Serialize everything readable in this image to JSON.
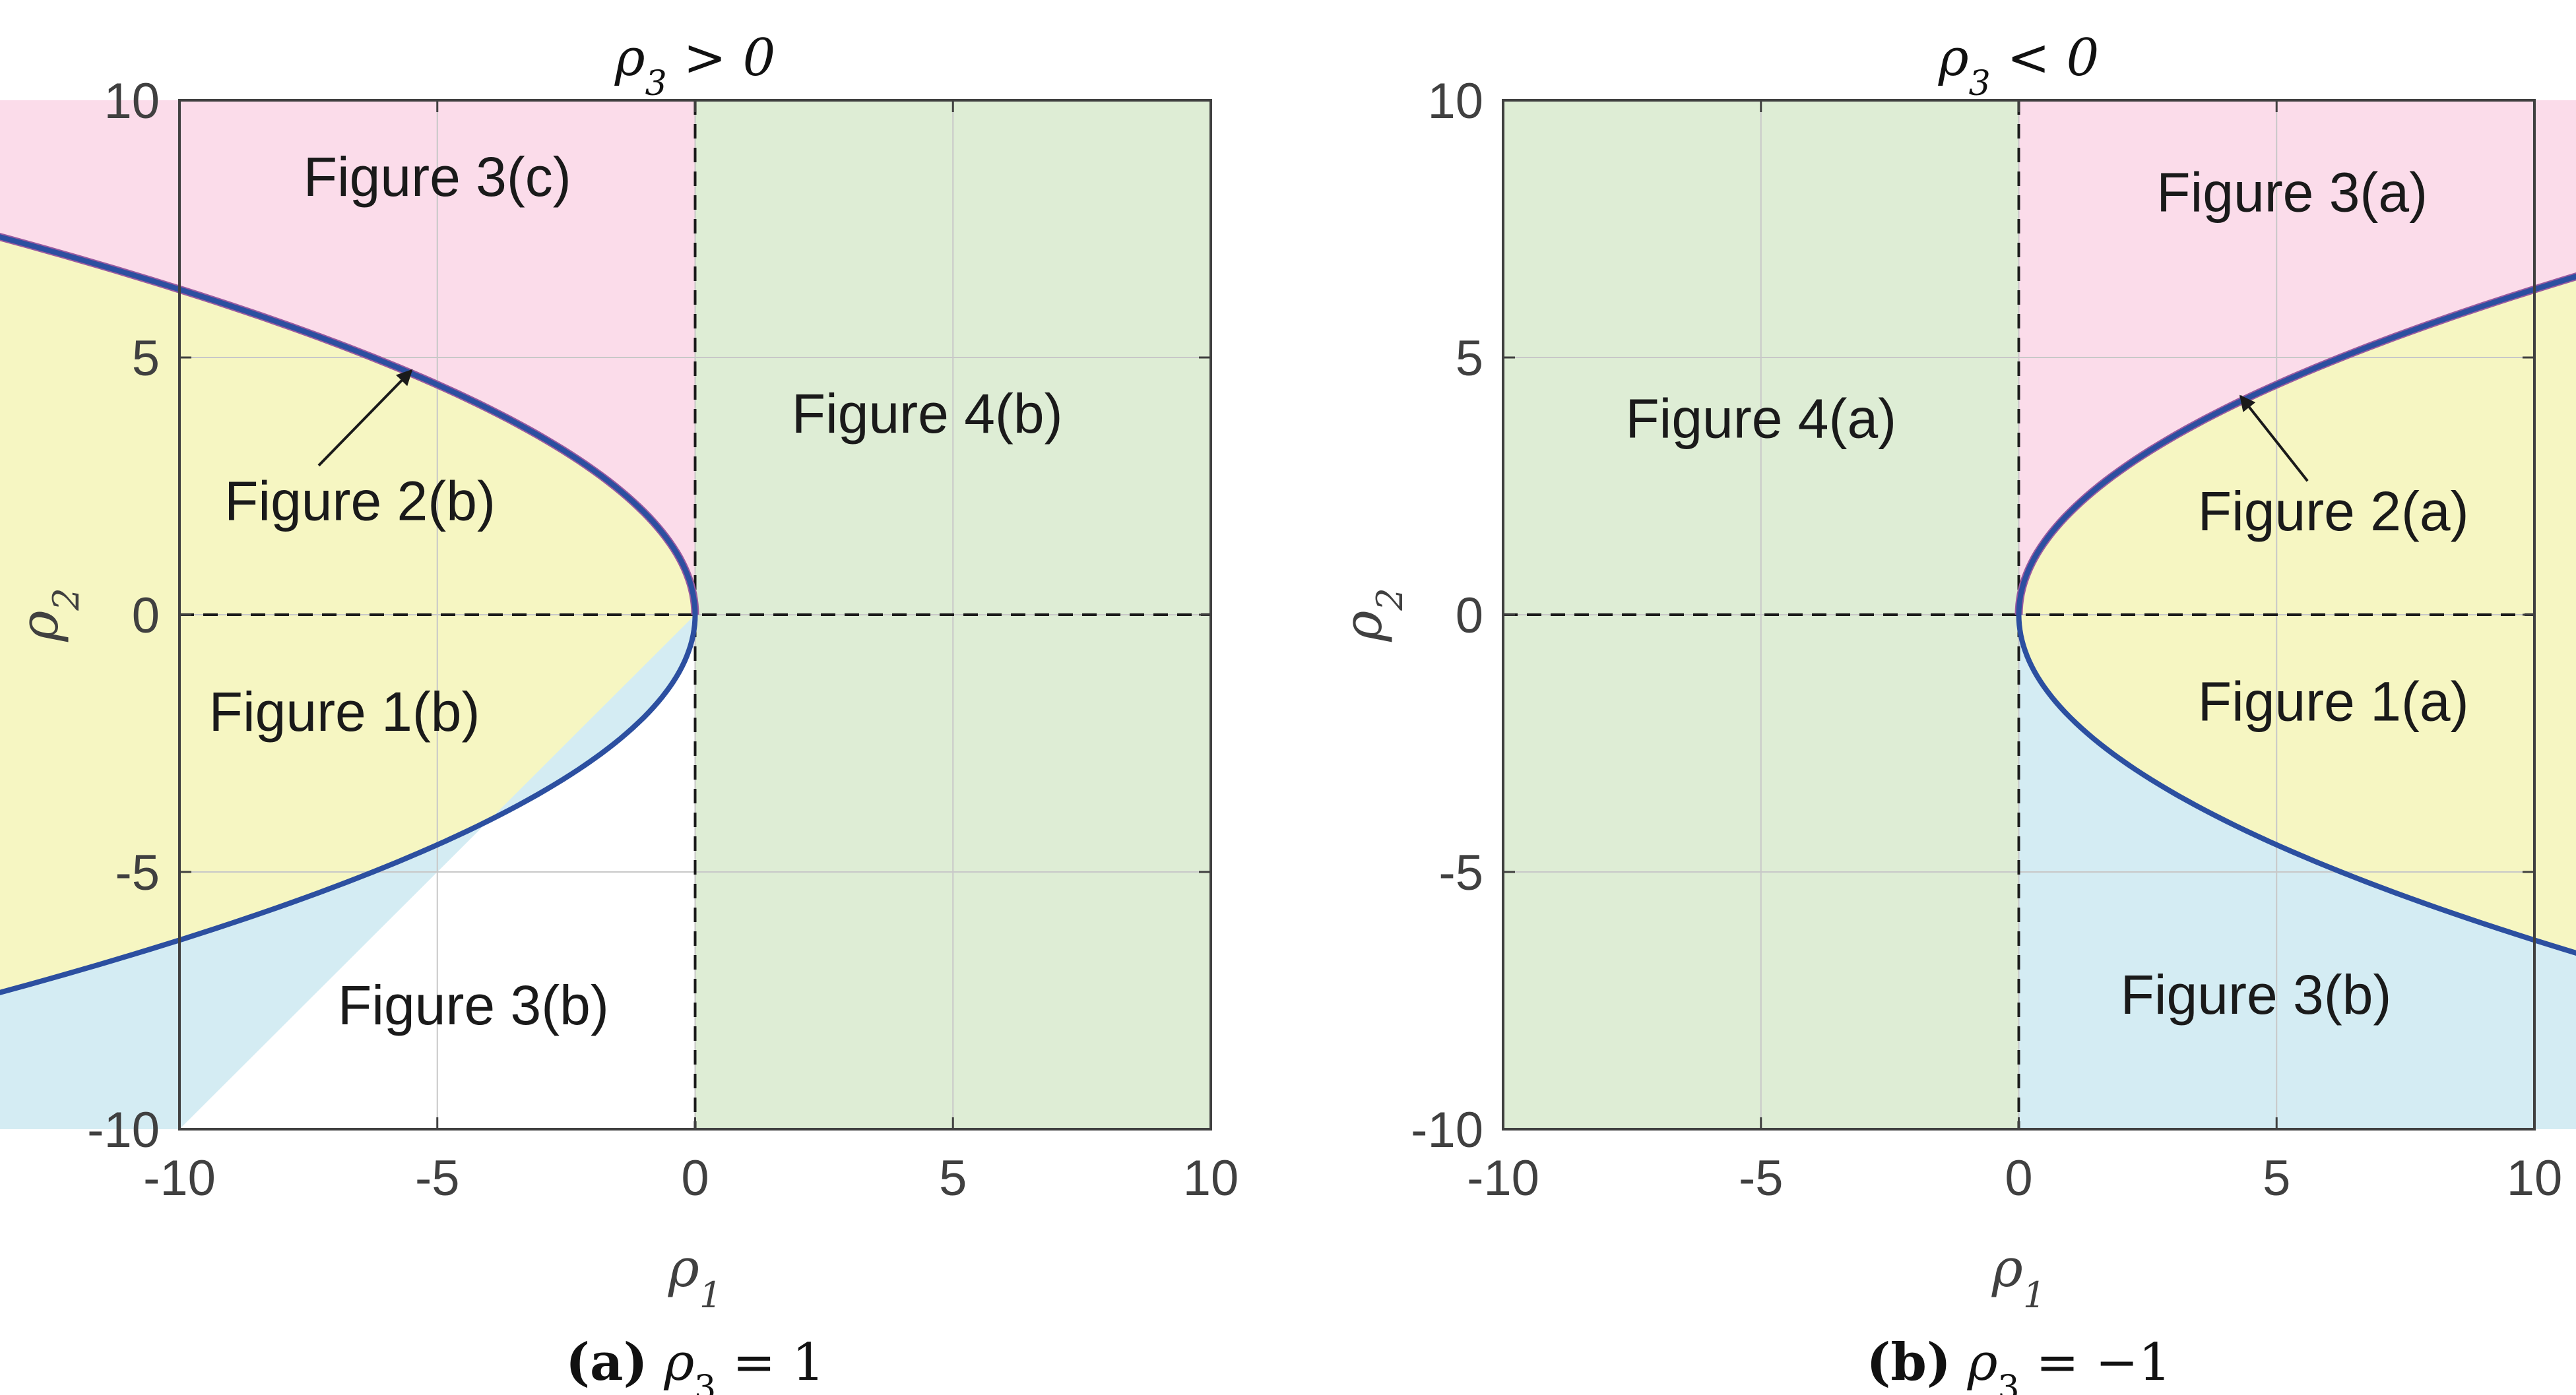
{
  "colors": {
    "pink": "#fbdcea",
    "yellow": "#f6f6c2",
    "blue": "#d4ecf3",
    "green": "#deedd5",
    "boundary_curve": "#2c4fa0",
    "boundary_curve_pink_side": "#9a5aa0",
    "zero_lines": "#1a1a1a",
    "grid": "#c8c8c8",
    "axes_frame": "#404040"
  },
  "chart_data": [
    {
      "type": "area",
      "title": "ρ3 > 0",
      "title_parts": {
        "symbol": "ρ",
        "sub": "3",
        "rest": " > 0"
      },
      "caption": {
        "letter": "(a)",
        "symbol": "ρ",
        "sub": "3",
        "rest": " = 1"
      },
      "xlabel": {
        "symbol": "ρ",
        "sub": "1"
      },
      "ylabel": {
        "symbol": "ρ",
        "sub": "2"
      },
      "xlim": [
        -10,
        10
      ],
      "ylim": [
        -10,
        10
      ],
      "xticks": [
        -10,
        -5,
        0,
        5,
        10
      ],
      "yticks": [
        -10,
        -5,
        0,
        5,
        10
      ],
      "grid": true,
      "rho3": 1,
      "boundary_curve": "rho1 = -rho2^2/4 (for rho1 <= 0)",
      "reference_lines": [
        {
          "orientation": "vertical",
          "at": 0,
          "style": "dashed"
        },
        {
          "orientation": "horizontal",
          "at": 0,
          "style": "dashed"
        }
      ],
      "regions": [
        {
          "label": "Figure 3(c)",
          "color": "pink",
          "text_at": [
            -5,
            8.5
          ]
        },
        {
          "label": "Figure 2(b)",
          "color": "yellow",
          "text_at": [
            -6.5,
            2.2
          ]
        },
        {
          "label": "Figure 1(b)",
          "color": "yellow",
          "text_at": [
            -6.8,
            -1.9
          ]
        },
        {
          "label": "Figure 3(b)",
          "color": "blue",
          "text_at": [
            -4.3,
            -7.6
          ]
        },
        {
          "label": "Figure 4(b)",
          "color": "green",
          "text_at": [
            4.5,
            3.9
          ]
        }
      ],
      "annotation_arrow": {
        "label": "Figure 2(b)",
        "from": [
          -7.3,
          2.9
        ],
        "to": [
          -5.5,
          4.75
        ]
      }
    },
    {
      "type": "area",
      "title": "ρ3 < 0",
      "title_parts": {
        "symbol": "ρ",
        "sub": "3",
        "rest": " < 0"
      },
      "caption": {
        "letter": "(b)",
        "symbol": "ρ",
        "sub": "3",
        "rest": " = −1"
      },
      "xlabel": {
        "symbol": "ρ",
        "sub": "1"
      },
      "ylabel": {
        "symbol": "ρ",
        "sub": "2"
      },
      "xlim": [
        -10,
        10
      ],
      "ylim": [
        -10,
        10
      ],
      "xticks": [
        -10,
        -5,
        0,
        5,
        10
      ],
      "yticks": [
        -10,
        -5,
        0,
        5,
        10
      ],
      "grid": true,
      "rho3": -1,
      "boundary_curve": "rho1 = rho2^2/4 (for rho1 >= 0)",
      "reference_lines": [
        {
          "orientation": "vertical",
          "at": 0,
          "style": "dashed"
        },
        {
          "orientation": "horizontal",
          "at": 0,
          "style": "dashed"
        }
      ],
      "regions": [
        {
          "label": "Figure 4(a)",
          "color": "green",
          "text_at": [
            -5,
            3.8
          ]
        },
        {
          "label": "Figure 3(a)",
          "color": "pink",
          "text_at": [
            5.3,
            8.2
          ]
        },
        {
          "label": "Figure 2(a)",
          "color": "yellow",
          "text_at": [
            6.1,
            2.0
          ]
        },
        {
          "label": "Figure 1(a)",
          "color": "yellow",
          "text_at": [
            6.1,
            -1.7
          ]
        },
        {
          "label": "Figure 3(b)",
          "color": "blue",
          "text_at": [
            4.6,
            -7.4
          ]
        }
      ],
      "annotation_arrow": {
        "label": "Figure 2(a)",
        "from": [
          5.6,
          2.6
        ],
        "to": [
          4.3,
          4.25
        ]
      }
    }
  ]
}
